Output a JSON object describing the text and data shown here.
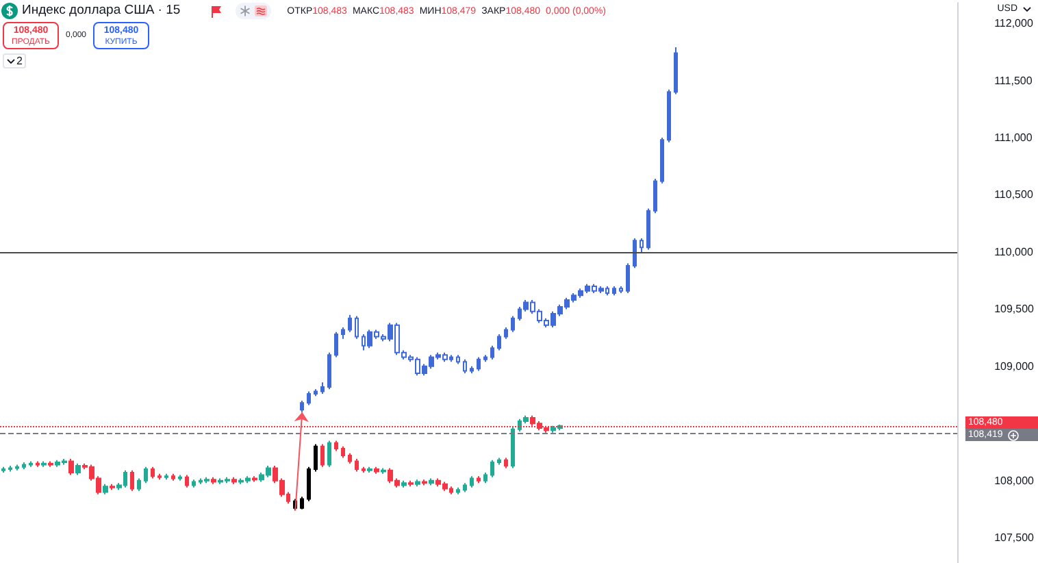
{
  "chart_data": {
    "type": "candlestick",
    "title": "Индекс доллара США · 15",
    "annotations": [
      "ОТКР",
      "108,483",
      "МАКС",
      "108,483",
      "МИН",
      "108,479",
      "ЗАКР",
      "108,480",
      "0,000 (0,00%)",
      "108,480",
      "ПРОДАТЬ",
      "0,000",
      "108,480",
      "КУПИТЬ",
      "2",
      "USD"
    ],
    "categories": [
      null,
      null,
      null,
      null,
      null,
      null,
      null,
      null,
      null,
      null,
      null,
      null,
      null,
      null,
      null,
      null,
      null,
      null,
      null,
      null,
      null,
      null,
      null,
      null,
      null,
      null,
      null,
      null,
      null,
      null,
      null,
      null,
      null,
      null,
      null,
      null,
      null,
      null,
      null,
      null,
      null,
      null,
      null,
      null,
      null,
      null,
      null,
      null,
      null,
      null,
      null,
      null,
      null,
      null,
      null,
      null,
      null,
      null,
      null,
      null,
      null,
      null,
      null,
      null,
      null,
      null,
      null,
      null,
      null,
      null,
      null,
      null,
      null,
      null,
      null,
      null,
      null,
      null,
      null,
      null,
      null,
      null,
      null,
      null,
      null,
      null,
      null,
      null,
      null,
      null,
      null,
      null,
      null,
      null,
      null,
      null,
      null,
      null,
      null,
      null,
      null,
      null,
      null,
      null,
      null,
      null,
      null,
      null,
      null,
      null,
      null,
      null,
      null,
      null,
      null,
      null,
      null,
      null,
      null,
      null,
      null,
      null,
      null,
      null,
      null,
      null,
      null,
      null,
      null,
      null,
      null,
      null,
      null,
      null,
      null,
      null,
      null,
      null,
      null,
      null,
      null
    ],
    "series": [
      {
        "ohlc": [
          [
            108.09,
            108.12,
            108.07,
            108.1
          ],
          [
            108.1,
            108.13,
            108.08,
            108.11
          ],
          [
            108.11,
            108.14,
            108.09,
            108.12
          ],
          [
            108.12,
            108.16,
            108.1,
            108.14
          ],
          [
            108.14,
            108.17,
            108.12,
            108.15
          ],
          [
            108.15,
            108.17,
            108.12,
            108.14
          ],
          [
            108.14,
            108.17,
            108.12,
            108.15
          ],
          [
            108.15,
            108.17,
            108.12,
            108.14
          ],
          [
            108.14,
            108.18,
            108.12,
            108.16
          ],
          [
            108.16,
            108.19,
            108.14,
            108.17
          ],
          [
            108.17,
            108.19,
            108.05,
            108.07
          ],
          [
            108.07,
            108.15,
            108.05,
            108.13
          ],
          [
            108.13,
            108.15,
            108.1,
            108.12
          ],
          [
            108.12,
            108.14,
            108.0,
            108.02
          ],
          [
            108.02,
            108.04,
            107.88,
            107.9
          ],
          [
            107.9,
            107.97,
            107.88,
            107.95
          ],
          [
            107.95,
            107.97,
            107.92,
            107.94
          ],
          [
            107.94,
            107.98,
            107.92,
            107.96
          ],
          [
            107.96,
            108.09,
            107.94,
            108.07
          ],
          [
            108.07,
            108.09,
            107.91,
            107.93
          ],
          [
            107.93,
            108.02,
            107.91,
            108.0
          ],
          [
            108.0,
            108.12,
            107.98,
            108.1
          ],
          [
            108.1,
            108.12,
            108.02,
            108.04
          ],
          [
            108.04,
            108.06,
            108.01,
            108.03
          ],
          [
            108.03,
            108.06,
            108.01,
            108.04
          ],
          [
            108.04,
            108.06,
            108.0,
            108.02
          ],
          [
            108.02,
            108.05,
            108.0,
            108.03
          ],
          [
            108.03,
            108.05,
            107.94,
            107.96
          ],
          [
            107.96,
            108.01,
            107.94,
            107.99
          ],
          [
            107.99,
            108.02,
            107.97,
            108.0
          ],
          [
            108.0,
            108.03,
            107.98,
            108.01
          ],
          [
            108.01,
            108.03,
            107.97,
            107.99
          ],
          [
            107.99,
            108.02,
            107.97,
            108.0
          ],
          [
            108.0,
            108.03,
            107.98,
            108.01
          ],
          [
            108.01,
            108.03,
            107.97,
            107.99
          ],
          [
            107.99,
            108.02,
            107.97,
            108.0
          ],
          [
            108.0,
            108.04,
            107.98,
            108.02
          ],
          [
            108.02,
            108.04,
            107.99,
            108.01
          ],
          [
            108.01,
            108.07,
            107.99,
            108.05
          ],
          [
            108.05,
            108.13,
            108.03,
            108.11
          ],
          [
            108.11,
            108.13,
            107.98,
            108.0
          ],
          [
            108.0,
            108.02,
            107.86,
            107.88
          ],
          [
            107.88,
            107.9,
            107.8,
            107.82
          ],
          [
            107.82,
            107.84,
            107.74,
            107.76
          ],
          [
            107.76,
            107.86,
            107.75,
            107.84
          ],
          [
            107.84,
            108.12,
            107.82,
            108.1
          ],
          [
            108.1,
            108.32,
            108.08,
            108.3
          ],
          [
            108.3,
            108.32,
            108.12,
            108.14
          ],
          [
            108.14,
            108.35,
            108.12,
            108.33
          ],
          [
            108.33,
            108.35,
            108.26,
            108.28
          ],
          [
            108.28,
            108.3,
            108.2,
            108.22
          ],
          [
            108.22,
            108.24,
            108.15,
            108.17
          ],
          [
            108.17,
            108.19,
            108.08,
            108.1
          ],
          [
            108.1,
            108.12,
            108.07,
            108.09
          ],
          [
            108.09,
            108.12,
            108.07,
            108.1
          ],
          [
            108.1,
            108.12,
            108.06,
            108.08
          ],
          [
            108.08,
            108.11,
            108.06,
            108.09
          ],
          [
            108.09,
            108.11,
            107.98,
            108.0
          ],
          [
            108.0,
            108.02,
            107.94,
            107.96
          ],
          [
            107.96,
            108.0,
            107.94,
            107.98
          ],
          [
            107.98,
            108.0,
            107.95,
            107.97
          ],
          [
            107.97,
            108.01,
            107.95,
            107.99
          ],
          [
            107.99,
            108.01,
            107.96,
            107.98
          ],
          [
            107.98,
            108.02,
            107.96,
            108.0
          ],
          [
            108.0,
            108.02,
            107.95,
            107.97
          ],
          [
            107.97,
            107.99,
            107.91,
            107.93
          ],
          [
            107.93,
            107.95,
            107.88,
            107.9
          ],
          [
            107.9,
            107.94,
            107.88,
            107.92
          ],
          [
            107.92,
            107.98,
            107.9,
            107.96
          ],
          [
            107.96,
            108.04,
            107.94,
            108.02
          ],
          [
            108.02,
            108.04,
            107.98,
            108.0
          ],
          [
            108.0,
            108.07,
            107.98,
            108.05
          ],
          [
            108.05,
            108.18,
            108.03,
            108.16
          ],
          [
            108.16,
            108.2,
            108.14,
            108.18
          ],
          [
            108.18,
            108.2,
            108.11,
            108.13
          ],
          [
            108.13,
            108.47,
            108.11,
            108.45
          ],
          [
            108.45,
            108.54,
            108.43,
            108.52
          ],
          [
            108.52,
            108.57,
            108.5,
            108.55
          ],
          [
            108.55,
            108.57,
            108.48,
            108.5
          ],
          [
            108.5,
            108.52,
            108.44,
            108.46
          ],
          [
            108.46,
            108.48,
            108.42,
            108.44
          ],
          [
            108.44,
            108.48,
            108.42,
            108.46
          ],
          [
            108.46,
            108.49,
            108.44,
            108.48
          ],
          null,
          null,
          null,
          null,
          null,
          null,
          null,
          null,
          null,
          null,
          null,
          null,
          null,
          null,
          null,
          null,
          null,
          null,
          null,
          null,
          null,
          null,
          null,
          null,
          null,
          null,
          null,
          null,
          null,
          null,
          null,
          null,
          null,
          null,
          null,
          null,
          null,
          null,
          null,
          null,
          null,
          null,
          null,
          null,
          null,
          null,
          null,
          null,
          null,
          null,
          null,
          null,
          null,
          null,
          null,
          null,
          null,
          null
        ],
        "colors": [
          "#22ab94",
          "#22ab94",
          "#22ab94",
          "#22ab94",
          "#22ab94",
          "#f23645",
          "#22ab94",
          "#f23645",
          "#22ab94",
          "#22ab94",
          "#f23645",
          "#22ab94",
          "#f23645",
          "#f23645",
          "#f23645",
          "#22ab94",
          "#f23645",
          "#22ab94",
          "#22ab94",
          "#f23645",
          "#22ab94",
          "#22ab94",
          "#f23645",
          "#f23645",
          "#22ab94",
          "#f23645",
          "#22ab94",
          "#f23645",
          "#22ab94",
          "#22ab94",
          "#22ab94",
          "#f23645",
          "#22ab94",
          "#22ab94",
          "#f23645",
          "#22ab94",
          "#22ab94",
          "#f23645",
          "#22ab94",
          "#22ab94",
          "#f23645",
          "#f23645",
          "#f23645",
          "#000000",
          "#000000",
          "#000000",
          "#000000",
          "#f23645",
          "#22ab94",
          "#f23645",
          "#f23645",
          "#f23645",
          "#f23645",
          "#f23645",
          "#22ab94",
          "#f23645",
          "#22ab94",
          "#f23645",
          "#f23645",
          "#22ab94",
          "#f23645",
          "#22ab94",
          "#f23645",
          "#22ab94",
          "#f23645",
          "#f23645",
          "#f23645",
          "#22ab94",
          "#22ab94",
          "#22ab94",
          "#f23645",
          "#22ab94",
          "#22ab94",
          "#22ab94",
          "#f23645",
          "#22ab94",
          "#22ab94",
          "#22ab94",
          "#f23645",
          "#f23645",
          "#f23645",
          "#22ab94",
          "#22ab94",
          null,
          null,
          null,
          null,
          null,
          null,
          null,
          null,
          null,
          null,
          null,
          null,
          null,
          null,
          null,
          null,
          null,
          null,
          null,
          null,
          null,
          null,
          null,
          null,
          null,
          null,
          null,
          null,
          null,
          null,
          null,
          null,
          null,
          null,
          null,
          null,
          null,
          null,
          null,
          null,
          null,
          null,
          null,
          null,
          null,
          null,
          null,
          null,
          null,
          null,
          null,
          null,
          null,
          null,
          null,
          null,
          null,
          null
        ]
      },
      {
        "color": "#3f6ad8",
        "ohlc": [
          null,
          null,
          null,
          null,
          null,
          null,
          null,
          null,
          null,
          null,
          null,
          null,
          null,
          null,
          null,
          null,
          null,
          null,
          null,
          null,
          null,
          null,
          null,
          null,
          null,
          null,
          null,
          null,
          null,
          null,
          null,
          null,
          null,
          null,
          null,
          null,
          null,
          null,
          null,
          null,
          null,
          null,
          null,
          null,
          [
            108.62,
            108.7,
            108.6,
            108.68
          ],
          [
            108.68,
            108.78,
            108.66,
            108.76
          ],
          [
            108.76,
            108.8,
            108.74,
            108.78
          ],
          [
            108.78,
            108.86,
            108.76,
            108.82
          ],
          [
            108.82,
            109.12,
            108.8,
            109.1
          ],
          [
            109.1,
            109.3,
            109.08,
            109.28
          ],
          [
            109.28,
            109.34,
            109.24,
            109.32
          ],
          [
            109.32,
            109.45,
            109.3,
            109.42
          ],
          [
            109.42,
            109.44,
            109.24,
            109.26
          ],
          [
            109.26,
            109.28,
            109.14,
            109.18
          ],
          [
            109.18,
            109.32,
            109.16,
            109.3
          ],
          [
            109.3,
            109.32,
            109.24,
            109.26
          ],
          [
            109.26,
            109.28,
            109.22,
            109.24
          ],
          [
            109.24,
            109.38,
            109.22,
            109.36
          ],
          [
            109.36,
            109.38,
            109.1,
            109.12
          ],
          [
            109.12,
            109.14,
            109.06,
            109.08
          ],
          [
            109.08,
            109.1,
            109.04,
            109.06
          ],
          [
            109.06,
            109.08,
            108.92,
            108.94
          ],
          [
            108.94,
            109.02,
            108.92,
            109.0
          ],
          [
            109.0,
            109.1,
            108.98,
            109.08
          ],
          [
            109.08,
            109.12,
            109.06,
            109.1
          ],
          [
            109.1,
            109.12,
            109.04,
            109.06
          ],
          [
            109.06,
            109.1,
            109.04,
            109.08
          ],
          [
            109.08,
            109.1,
            109.02,
            109.04
          ],
          [
            109.04,
            109.06,
            108.94,
            108.96
          ],
          [
            108.96,
            109.0,
            108.94,
            108.98
          ],
          [
            108.98,
            109.08,
            108.96,
            109.06
          ],
          [
            109.06,
            109.1,
            109.04,
            109.08
          ],
          [
            109.08,
            109.18,
            109.06,
            109.16
          ],
          [
            109.16,
            109.28,
            109.14,
            109.26
          ],
          [
            109.26,
            109.34,
            109.24,
            109.32
          ],
          [
            109.32,
            109.44,
            109.3,
            109.42
          ],
          [
            109.42,
            109.52,
            109.4,
            109.5
          ],
          [
            109.5,
            109.58,
            109.48,
            109.56
          ],
          [
            109.56,
            109.58,
            109.46,
            109.48
          ],
          [
            109.48,
            109.5,
            109.38,
            109.4
          ],
          [
            109.4,
            109.42,
            109.34,
            109.36
          ],
          [
            109.36,
            109.48,
            109.34,
            109.46
          ],
          [
            109.46,
            109.54,
            109.44,
            109.52
          ],
          [
            109.52,
            109.6,
            109.5,
            109.58
          ],
          [
            109.58,
            109.64,
            109.56,
            109.62
          ],
          [
            109.62,
            109.68,
            109.6,
            109.66
          ],
          [
            109.66,
            109.72,
            109.64,
            109.7
          ],
          [
            109.7,
            109.72,
            109.64,
            109.66
          ],
          [
            109.66,
            109.7,
            109.64,
            109.68
          ],
          [
            109.68,
            109.7,
            109.62,
            109.64
          ],
          [
            109.64,
            109.7,
            109.62,
            109.68
          ],
          [
            109.68,
            109.7,
            109.64,
            109.66
          ],
          [
            109.66,
            109.9,
            109.64,
            109.88
          ],
          [
            109.88,
            110.12,
            109.86,
            110.1
          ],
          [
            110.1,
            110.12,
            110.0,
            110.04
          ],
          [
            110.04,
            110.38,
            110.02,
            110.36
          ],
          [
            110.36,
            110.64,
            110.34,
            110.62
          ],
          [
            110.62,
            111.0,
            110.6,
            110.98
          ],
          [
            110.98,
            111.42,
            110.96,
            111.4
          ],
          [
            111.4,
            111.79,
            111.38,
            111.74
          ],
          null,
          null,
          null,
          null,
          null,
          null,
          null,
          null,
          null,
          null,
          null,
          null,
          null,
          null,
          null,
          null,
          null,
          null,
          null,
          null,
          null,
          null,
          null,
          null,
          null,
          null,
          null,
          null,
          null,
          null,
          null,
          null,
          null,
          null,
          null,
          null,
          null,
          null,
          null,
          null,
          null
        ]
      }
    ],
    "ylim": [
      107.28,
      112.18
    ],
    "yticks": [
      {
        "value": 107.5,
        "label": "107,500"
      },
      {
        "value": 108,
        "label": "108,000"
      },
      {
        "value": 109,
        "label": "109,000"
      },
      {
        "value": 109.5,
        "label": "109,500"
      },
      {
        "value": 110,
        "label": "110,000"
      },
      {
        "value": 110.5,
        "label": "110,500"
      },
      {
        "value": 111,
        "label": "111,000"
      },
      {
        "value": 111.5,
        "label": "111,500"
      },
      {
        "value": 112,
        "label": "112,000"
      }
    ],
    "ref_lines": [
      {
        "axis": "y",
        "value": 110,
        "color": "#4a4a4a",
        "line_style": "solid"
      },
      {
        "axis": "y",
        "value": 108.48,
        "label": "108,480",
        "color": "#f23645",
        "line_style": "dotted"
      },
      {
        "axis": "y",
        "value": 108.419,
        "label": "108,419",
        "color": "#787b86",
        "line_style": "dashed"
      }
    ],
    "tick_labels": "y"
  }
}
